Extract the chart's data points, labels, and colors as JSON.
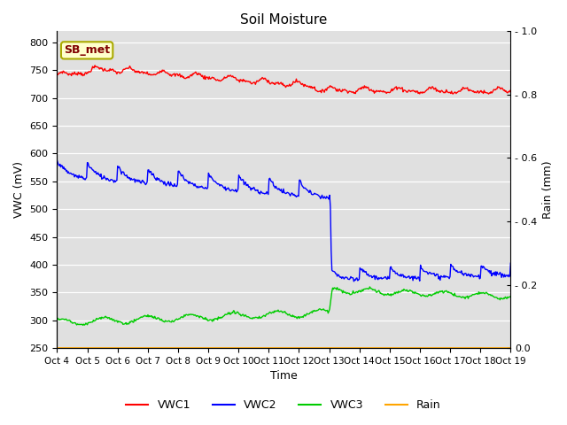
{
  "title": "Soil Moisture",
  "xlabel": "Time",
  "ylabel_left": "VWC (mV)",
  "ylabel_right": "Rain (mm)",
  "annotation": "SB_met",
  "x_tick_labels": [
    "Oct 4",
    "Oct 5",
    "Oct 6",
    "Oct 7",
    "Oct 8",
    "Oct 9",
    "Oct 10",
    "Oct 11",
    "Oct 12",
    "Oct 13",
    "Oct 14",
    "Oct 15",
    "Oct 16",
    "Oct 17",
    "Oct 18",
    "Oct 19"
  ],
  "ylim_left": [
    250,
    820
  ],
  "ylim_right": [
    0.0,
    1.0
  ],
  "yticks_left": [
    250,
    300,
    350,
    400,
    450,
    500,
    550,
    600,
    650,
    700,
    750,
    800
  ],
  "yticks_right": [
    0.0,
    0.2,
    0.4,
    0.6,
    0.8,
    1.0
  ],
  "figure_bg": "#ffffff",
  "plot_bg_color": "#e0e0e0",
  "grid_color": "#ffffff",
  "vwc1_color": "#ff0000",
  "vwc2_color": "#0000ff",
  "vwc3_color": "#00cc00",
  "rain_color": "#ffa500",
  "legend_labels": [
    "VWC1",
    "VWC2",
    "VWC3",
    "Rain"
  ],
  "annotation_fg": "#800000",
  "annotation_bg": "#ffffcc",
  "annotation_edge": "#aaaa00"
}
